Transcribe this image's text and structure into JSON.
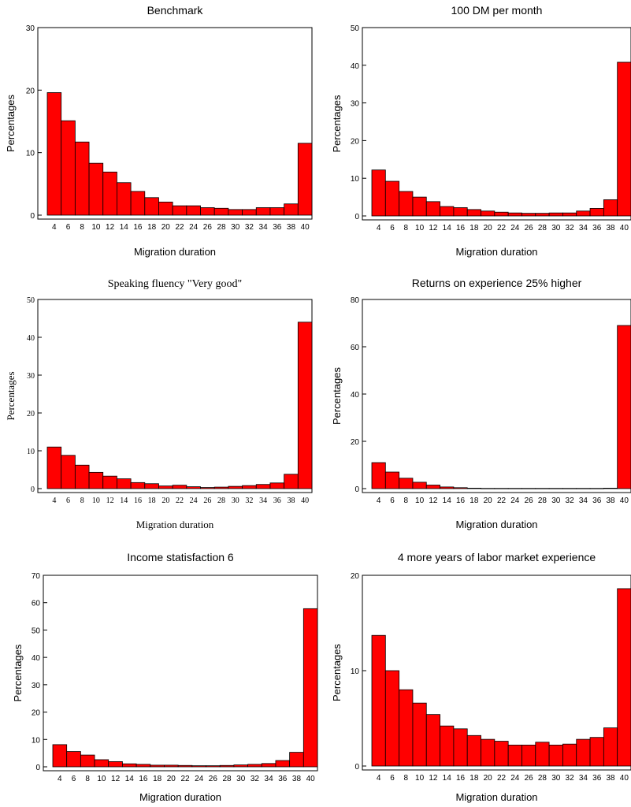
{
  "chart_data": [
    {
      "type": "bar",
      "title": "Benchmark",
      "xlabel": "Migration duration",
      "ylabel": "Percentages",
      "categories": [
        "4",
        "6",
        "8",
        "10",
        "12",
        "14",
        "16",
        "18",
        "20",
        "22",
        "24",
        "26",
        "28",
        "30",
        "32",
        "34",
        "36",
        "38",
        "40"
      ],
      "values": [
        19.6,
        15.1,
        11.7,
        8.3,
        6.9,
        5.2,
        3.8,
        2.8,
        2.1,
        1.5,
        1.5,
        1.2,
        1.1,
        0.9,
        0.9,
        1.2,
        1.2,
        1.8,
        11.5
      ],
      "ylim": [
        0,
        30
      ],
      "yticks": [
        "0",
        "10",
        "20",
        "30"
      ],
      "grid": false,
      "bar_color": "#ff0000",
      "font": "sans"
    },
    {
      "type": "bar",
      "title": "100 DM per month",
      "xlabel": "Migration duration",
      "ylabel": "Percentages",
      "categories": [
        "4",
        "6",
        "8",
        "10",
        "12",
        "14",
        "16",
        "18",
        "20",
        "22",
        "24",
        "26",
        "28",
        "30",
        "32",
        "34",
        "36",
        "38",
        "40"
      ],
      "values": [
        12.2,
        9.2,
        6.5,
        5.0,
        3.8,
        2.5,
        2.2,
        1.7,
        1.3,
        1.0,
        0.8,
        0.7,
        0.7,
        0.8,
        0.8,
        1.3,
        2.0,
        4.3,
        40.8
      ],
      "ylim": [
        0,
        50
      ],
      "yticks": [
        "0",
        "10",
        "20",
        "30",
        "40",
        "50"
      ],
      "grid": false,
      "bar_color": "#ff0000",
      "font": "sans"
    },
    {
      "type": "bar",
      "title": "Speaking fluency \"Very good\"",
      "xlabel": "Migration duration",
      "ylabel": "Percentages",
      "categories": [
        "4",
        "6",
        "8",
        "10",
        "12",
        "14",
        "16",
        "18",
        "20",
        "22",
        "24",
        "26",
        "28",
        "30",
        "32",
        "34",
        "36",
        "38",
        "40"
      ],
      "values": [
        11.0,
        8.8,
        6.2,
        4.3,
        3.3,
        2.6,
        1.6,
        1.3,
        0.7,
        0.9,
        0.5,
        0.3,
        0.4,
        0.6,
        0.8,
        1.1,
        1.5,
        3.8,
        44.0
      ],
      "ylim": [
        0,
        50
      ],
      "yticks": [
        "0",
        "10",
        "20",
        "30",
        "40",
        "50"
      ],
      "grid": false,
      "bar_color": "#ff0000",
      "font": "serif"
    },
    {
      "type": "bar",
      "title": "Returns on experience 25% higher",
      "xlabel": "Migration duration",
      "ylabel": "Percentages",
      "categories": [
        "4",
        "6",
        "8",
        "10",
        "12",
        "14",
        "16",
        "18",
        "20",
        "22",
        "24",
        "26",
        "28",
        "30",
        "32",
        "34",
        "36",
        "38",
        "40"
      ],
      "values": [
        11.0,
        7.0,
        4.4,
        2.7,
        1.5,
        0.7,
        0.4,
        0.2,
        0.1,
        0.1,
        0.1,
        0.1,
        0.1,
        0.1,
        0.1,
        0.1,
        0.1,
        0.2,
        69.0
      ],
      "ylim": [
        0,
        80
      ],
      "yticks": [
        "0",
        "20",
        "40",
        "60",
        "80"
      ],
      "grid": false,
      "bar_color": "#ff0000",
      "font": "sans"
    },
    {
      "type": "bar",
      "title": "Income statisfaction 6",
      "xlabel": "Migration duration",
      "ylabel": "Percentages",
      "categories": [
        "4",
        "6",
        "8",
        "10",
        "12",
        "14",
        "16",
        "18",
        "20",
        "22",
        "24",
        "26",
        "28",
        "30",
        "32",
        "34",
        "36",
        "38",
        "40"
      ],
      "values": [
        8.1,
        5.6,
        4.3,
        2.6,
        1.9,
        1.1,
        0.9,
        0.6,
        0.6,
        0.5,
        0.4,
        0.4,
        0.5,
        0.7,
        0.9,
        1.2,
        2.3,
        5.3,
        57.8
      ],
      "ylim": [
        0,
        70
      ],
      "yticks": [
        "0",
        "10",
        "20",
        "30",
        "40",
        "50",
        "60",
        "70"
      ],
      "grid": false,
      "bar_color": "#ff0000",
      "font": "sans"
    },
    {
      "type": "bar",
      "title": "4 more years of labor market experience",
      "xlabel": "Migration duration",
      "ylabel": "Percentages",
      "categories": [
        "4",
        "6",
        "8",
        "10",
        "12",
        "14",
        "16",
        "18",
        "20",
        "22",
        "24",
        "26",
        "28",
        "30",
        "32",
        "34",
        "36",
        "38",
        "40"
      ],
      "values": [
        13.7,
        10.0,
        8.0,
        6.6,
        5.4,
        4.2,
        3.9,
        3.2,
        2.8,
        2.6,
        2.2,
        2.2,
        2.5,
        2.2,
        2.3,
        2.8,
        3.0,
        4.0,
        18.6
      ],
      "ylim": [
        0,
        20
      ],
      "yticks": [
        "0",
        "10",
        "20"
      ],
      "grid": false,
      "bar_color": "#ff0000",
      "font": "sans"
    }
  ]
}
